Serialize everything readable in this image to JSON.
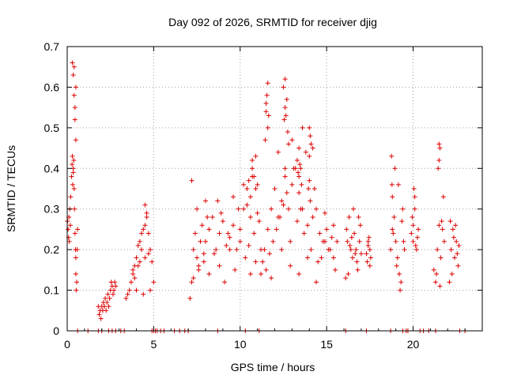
{
  "chart_data": {
    "type": "scatter",
    "title": "Day 092 of 2026, SRMTID for receiver djig",
    "xlabel": "GPS time / hours",
    "ylabel": "SRMTID / TECUs",
    "xlim": [
      0,
      24
    ],
    "ylim": [
      0,
      0.7
    ],
    "xticks": [
      0,
      5,
      10,
      15,
      20
    ],
    "xtick_labels": [
      "0",
      "5",
      "10",
      "15",
      "20"
    ],
    "yticks": [
      0,
      0.1,
      0.2,
      0.3,
      0.4,
      0.5,
      0.6,
      0.7
    ],
    "ytick_labels": [
      "0",
      "0.1",
      "0.2",
      "0.3",
      "0.4",
      "0.5",
      "0.6",
      "0.7"
    ],
    "grid": true,
    "marker": "+",
    "color": "#dd0000",
    "series": [
      {
        "name": "SRMTID",
        "x": [
          0.02,
          0.05,
          0.08,
          0.1,
          0.12,
          0.15,
          0.18,
          0.2,
          0.25,
          0.28,
          0.3,
          0.32,
          0.35,
          0.38,
          0.4,
          0.42,
          0.45,
          0.48,
          0.5,
          0.52,
          0.55,
          0.58,
          0.6,
          0.3,
          0.35,
          0.4,
          0.45,
          0.5,
          0.45,
          0.5,
          0.4,
          0.35,
          0.5,
          1.8,
          1.85,
          1.9,
          1.95,
          2.0,
          2.05,
          2.1,
          2.15,
          2.2,
          2.25,
          2.3,
          2.35,
          2.4,
          2.45,
          2.5,
          2.55,
          2.6,
          2.65,
          2.7,
          2.75,
          2.8,
          3.4,
          3.5,
          3.6,
          3.7,
          3.8,
          3.9,
          4.0,
          4.1,
          4.2,
          4.3,
          4.4,
          4.5,
          4.6,
          4.7,
          4.8,
          4.9,
          5.0,
          3.8,
          4.0,
          4.2,
          4.4,
          4.5,
          4.6,
          4.7,
          3.9,
          4.1,
          4.3,
          4.5,
          4.8,
          7.1,
          7.2,
          7.3,
          7.4,
          7.5,
          7.6,
          7.7,
          7.8,
          7.9,
          8.0,
          8.2,
          8.4,
          8.6,
          8.8,
          9.0,
          9.2,
          9.4,
          9.6,
          9.8,
          10.0,
          10.2,
          10.4,
          10.6,
          10.8,
          11.0,
          7.3,
          7.6,
          7.9,
          8.2,
          8.5,
          8.8,
          9.1,
          9.4,
          9.7,
          10.0,
          10.3,
          10.6,
          10.9,
          11.2,
          7.5,
          8.1,
          8.7,
          9.3,
          9.9,
          10.5,
          11.1,
          7.2,
          8.0,
          8.9,
          9.6,
          10.2,
          10.7,
          10.5,
          10.7,
          10.9,
          10.6,
          10.8,
          11.0,
          10.4,
          10.9,
          10.7,
          11.2,
          11.4,
          11.6,
          11.8,
          12.0,
          12.2,
          12.4,
          12.6,
          12.8,
          13.0,
          13.2,
          13.4,
          13.6,
          13.8,
          14.0,
          14.2,
          14.4,
          14.6,
          14.8,
          15.0,
          15.2,
          15.4,
          15.6,
          11.5,
          11.9,
          12.3,
          12.7,
          13.1,
          13.5,
          13.9,
          14.3,
          14.7,
          15.1,
          15.5,
          11.7,
          12.1,
          12.5,
          12.9,
          13.3,
          13.7,
          14.1,
          14.5,
          14.9,
          15.3,
          11.3,
          11.8,
          12.4,
          12.9,
          13.4,
          13.9,
          14.4,
          14.9,
          15.4,
          12.2,
          12.6,
          13.0,
          13.6,
          14.2,
          11.5,
          11.6,
          11.55,
          11.6,
          11.65,
          11.5,
          11.45,
          12.5,
          12.6,
          12.7,
          12.65,
          12.75,
          12.6,
          12.8,
          12.55,
          13.3,
          13.4,
          13.5,
          13.35,
          13.45,
          13.55,
          13.4,
          14.0,
          14.05,
          14.1,
          14.0,
          13.95,
          14.05,
          16.1,
          16.2,
          16.3,
          16.4,
          16.5,
          16.6,
          16.7,
          16.8,
          16.9,
          17.0,
          16.15,
          16.35,
          16.55,
          16.75,
          16.95,
          16.25,
          16.45,
          16.65,
          16.85,
          17.3,
          17.4,
          17.5,
          17.35,
          17.45,
          17.55,
          17.4,
          17.5,
          18.7,
          18.8,
          18.9,
          19.0,
          19.1,
          19.2,
          19.3,
          19.4,
          19.5,
          18.75,
          18.95,
          19.15,
          19.35,
          18.85,
          19.05,
          19.25,
          19.45,
          18.8,
          18.78,
          19.9,
          20.0,
          20.1,
          20.2,
          20.3,
          19.95,
          20.05,
          20.15,
          20.25,
          20.0,
          20.1,
          21.2,
          21.3,
          21.4,
          21.5,
          21.6,
          21.7,
          21.8,
          21.35,
          21.55,
          21.75,
          21.45,
          21.65,
          21.5,
          21.5,
          21.55,
          22.1,
          22.2,
          22.3,
          22.4,
          22.5,
          22.6,
          22.15,
          22.35,
          22.55,
          22.25,
          22.45,
          22.65,
          0.6,
          1.2,
          1.8,
          2.0,
          2.4,
          2.6,
          2.8,
          3.1,
          3.3,
          4.9,
          5.0,
          5.1,
          5.2,
          5.4,
          5.6,
          6.2,
          6.5,
          6.8,
          7.0,
          8.7,
          10.3,
          11.1,
          16.1,
          17.3,
          18.7,
          19.4,
          19.6,
          19.7,
          20.4,
          20.6,
          20.9,
          21.3,
          22.7,
          23.0
        ],
        "y": [
          0.27,
          0.25,
          0.23,
          0.28,
          0.22,
          0.3,
          0.26,
          0.33,
          0.38,
          0.41,
          0.43,
          0.36,
          0.39,
          0.42,
          0.35,
          0.3,
          0.24,
          0.2,
          0.14,
          0.1,
          0.12,
          0.2,
          0.25,
          0.66,
          0.63,
          0.58,
          0.52,
          0.47,
          0.55,
          0.6,
          0.65,
          0.4,
          0.18,
          0.06,
          0.04,
          0.05,
          0.03,
          0.06,
          0.05,
          0.07,
          0.06,
          0.08,
          0.05,
          0.07,
          0.09,
          0.06,
          0.08,
          0.1,
          0.12,
          0.11,
          0.09,
          0.1,
          0.12,
          0.11,
          0.08,
          0.09,
          0.1,
          0.12,
          0.15,
          0.13,
          0.18,
          0.16,
          0.22,
          0.2,
          0.25,
          0.31,
          0.28,
          0.24,
          0.2,
          0.17,
          0.12,
          0.14,
          0.1,
          0.17,
          0.09,
          0.26,
          0.29,
          0.19,
          0.16,
          0.21,
          0.24,
          0.18,
          0.1,
          0.08,
          0.12,
          0.2,
          0.24,
          0.18,
          0.16,
          0.22,
          0.26,
          0.19,
          0.22,
          0.25,
          0.28,
          0.2,
          0.24,
          0.27,
          0.21,
          0.23,
          0.26,
          0.2,
          0.25,
          0.3,
          0.35,
          0.28,
          0.24,
          0.29,
          0.13,
          0.15,
          0.17,
          0.14,
          0.19,
          0.16,
          0.12,
          0.2,
          0.15,
          0.22,
          0.18,
          0.14,
          0.17,
          0.2,
          0.3,
          0.28,
          0.32,
          0.24,
          0.3,
          0.21,
          0.27,
          0.37,
          0.32,
          0.29,
          0.33,
          0.36,
          0.38,
          0.37,
          0.4,
          0.43,
          0.33,
          0.38,
          0.36,
          0.31,
          0.35,
          0.42,
          0.14,
          0.2,
          0.25,
          0.3,
          0.35,
          0.28,
          0.32,
          0.38,
          0.3,
          0.36,
          0.4,
          0.34,
          0.3,
          0.44,
          0.37,
          0.28,
          0.3,
          0.24,
          0.22,
          0.25,
          0.2,
          0.26,
          0.22,
          0.15,
          0.22,
          0.28,
          0.34,
          0.4,
          0.3,
          0.26,
          0.35,
          0.18,
          0.2,
          0.15,
          0.19,
          0.25,
          0.31,
          0.22,
          0.27,
          0.24,
          0.2,
          0.17,
          0.29,
          0.23,
          0.17,
          0.13,
          0.2,
          0.16,
          0.14,
          0.18,
          0.12,
          0.22,
          0.18,
          0.44,
          0.4,
          0.47,
          0.5,
          0.45,
          0.56,
          0.61,
          0.58,
          0.5,
          0.53,
          0.54,
          0.47,
          0.6,
          0.62,
          0.57,
          0.53,
          0.49,
          0.55,
          0.46,
          0.52,
          0.42,
          0.45,
          0.4,
          0.39,
          0.41,
          0.36,
          0.38,
          0.5,
          0.48,
          0.46,
          0.43,
          0.35,
          0.32,
          0.13,
          0.22,
          0.28,
          0.2,
          0.18,
          0.24,
          0.2,
          0.15,
          0.22,
          0.19,
          0.25,
          0.21,
          0.3,
          0.17,
          0.26,
          0.14,
          0.23,
          0.19,
          0.28,
          0.19,
          0.22,
          0.2,
          0.17,
          0.23,
          0.18,
          0.21,
          0.16,
          0.2,
          0.25,
          0.28,
          0.22,
          0.18,
          0.14,
          0.12,
          0.3,
          0.2,
          0.43,
          0.4,
          0.36,
          0.27,
          0.24,
          0.16,
          0.1,
          0.22,
          0.33,
          0.36,
          0.24,
          0.22,
          0.3,
          0.2,
          0.25,
          0.28,
          0.35,
          0.21,
          0.23,
          0.26,
          0.33,
          0.15,
          0.12,
          0.2,
          0.26,
          0.18,
          0.25,
          0.22,
          0.14,
          0.45,
          0.33,
          0.4,
          0.27,
          0.46,
          0.42,
          0.11,
          0.12,
          0.2,
          0.25,
          0.18,
          0.22,
          0.16,
          0.27,
          0.23,
          0.19,
          0.14,
          0.26,
          0.21,
          0,
          0,
          0,
          0,
          0,
          0,
          0,
          0,
          0,
          0,
          0,
          0,
          0,
          0,
          0,
          0,
          0,
          0,
          0,
          0,
          0,
          0,
          0,
          0,
          0,
          0,
          0,
          0,
          0,
          0,
          0,
          0,
          0,
          0
        ]
      }
    ]
  }
}
